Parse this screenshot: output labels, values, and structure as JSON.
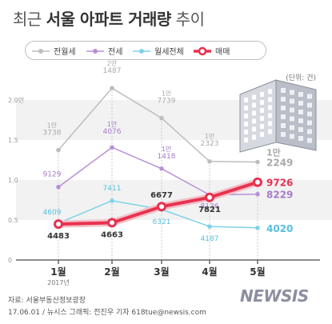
{
  "title": {
    "normal": "최근 ",
    "bold": "서울 아파트 거래량",
    "suffix": " 추이"
  },
  "unit": "(단위: 건)",
  "legend": [
    {
      "name": "전월세",
      "color": "#bdbdbd"
    },
    {
      "name": "전세",
      "color": "#b890d8"
    },
    {
      "name": "월세전체",
      "color": "#7fd2e8"
    },
    {
      "name": "매매",
      "color": "#e8324f"
    }
  ],
  "chart_data": {
    "type": "line",
    "categories": [
      "1월",
      "2월",
      "3월",
      "4월",
      "5월"
    ],
    "category_sublabels": [
      "2017년",
      "",
      "",
      "",
      ""
    ],
    "ytick_labels": [
      "0",
      "0.5",
      "1.0",
      "1.5",
      "2.0만"
    ],
    "ylim": [
      0,
      21000
    ],
    "series": [
      {
        "name": "전월세",
        "color": "#bdbdbd",
        "values": [
          13738,
          21487,
          17739,
          12323,
          12249
        ],
        "labels_top": [
          "1만",
          "2만",
          "1만",
          "1만",
          "1만"
        ],
        "labels_bottom": [
          "3738",
          "1487",
          "7739",
          "2323",
          "2249"
        ]
      },
      {
        "name": "전세",
        "color": "#b890d8",
        "values": [
          9129,
          14076,
          11418,
          8136,
          8229
        ],
        "labels_top": [
          "",
          "1만",
          "1만",
          "",
          ""
        ],
        "labels_bottom": [
          "9129",
          "4076",
          "1418",
          "8136",
          "8229"
        ]
      },
      {
        "name": "월세전체",
        "color": "#7fd2e8",
        "values": [
          4609,
          7411,
          6321,
          4187,
          4020
        ],
        "labels_top": [
          "",
          "",
          "",
          "",
          ""
        ],
        "labels_bottom": [
          "4609",
          "7411",
          "6321",
          "4187",
          "4020"
        ]
      },
      {
        "name": "매매",
        "color": "#e8324f",
        "values": [
          4483,
          4663,
          6677,
          7821,
          9726
        ],
        "labels_top": [
          "",
          "",
          "",
          "",
          ""
        ],
        "labels_bottom": [
          "4483",
          "4663",
          "6677",
          "7821",
          "9726"
        ]
      }
    ]
  },
  "footer": {
    "source": "자료: 서울부동산정보광장",
    "credit": "17.06.01 / 뉴시스 그래픽: 전진우 기자 618tue@newsis.com",
    "logo": "NEWSIS"
  }
}
